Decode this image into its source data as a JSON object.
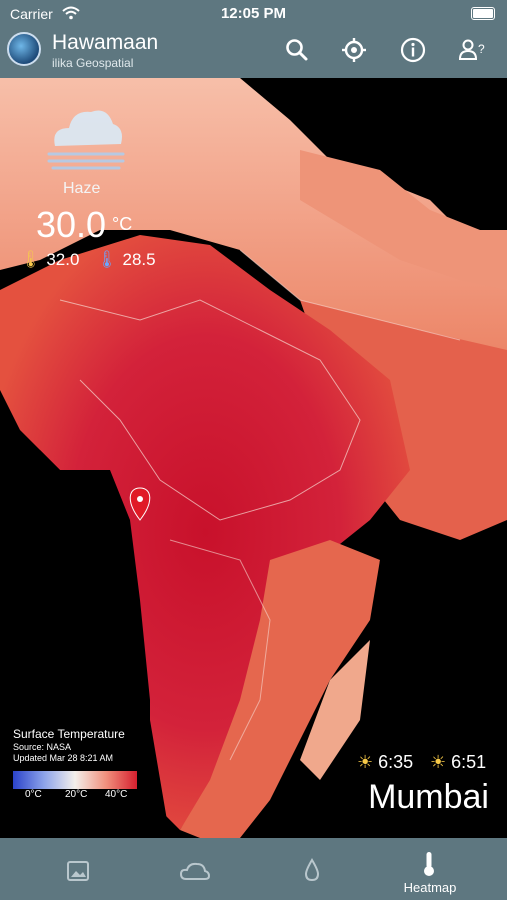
{
  "status": {
    "carrier": "Carrier",
    "time": "12:05 PM"
  },
  "header": {
    "title": "Hawamaan",
    "subtitle": "ilika Geospatial"
  },
  "weather": {
    "condition": "Haze",
    "temperature": "30.0",
    "unit": "°C",
    "max": "32.0",
    "min": "28.5"
  },
  "legend": {
    "title": "Surface Temperature",
    "source": "Source: NASA",
    "updated": "Updated Mar 28 8:21 AM",
    "ticks": [
      "0°C",
      "20°C",
      "40°C"
    ]
  },
  "sun": {
    "sunrise": "6:35",
    "sunset": "6:51"
  },
  "location": {
    "city": "Mumbai"
  },
  "tabs": [
    {
      "label": "",
      "icon": "image-icon"
    },
    {
      "label": "",
      "icon": "cloud-icon"
    },
    {
      "label": "",
      "icon": "drop-icon"
    },
    {
      "label": "Heatmap",
      "icon": "thermometer-icon"
    }
  ],
  "colors": {
    "bar": "#5e7780",
    "heat": "#d6202f"
  }
}
